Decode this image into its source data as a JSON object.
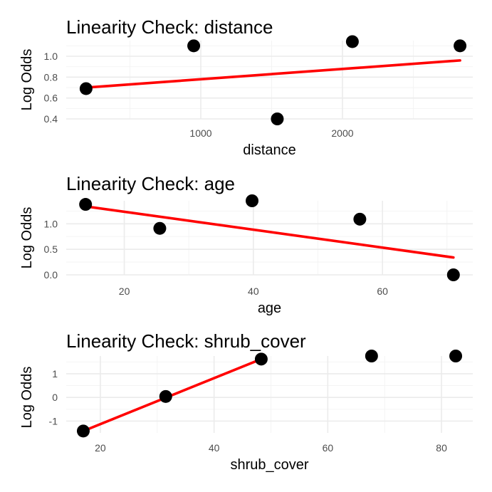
{
  "chart_data": [
    {
      "type": "scatter",
      "title": "Linearity Check: distance",
      "xlabel": "distance",
      "ylabel": "Log Odds",
      "xlim": [
        50,
        2920
      ],
      "ylim": [
        0.4,
        1.15
      ],
      "x_ticks": [
        1000,
        2000
      ],
      "x_minor_ticks": [
        500,
        1500,
        2500
      ],
      "y_ticks": [
        0.4,
        0.6,
        0.8,
        1.0
      ],
      "y_tick_labels": [
        "0.4",
        "0.6",
        "0.8",
        "1.0"
      ],
      "y_minor_ticks": [
        0.5,
        0.7,
        0.9,
        1.1
      ],
      "points": [
        {
          "x": 190,
          "y": 0.69
        },
        {
          "x": 950,
          "y": 1.1
        },
        {
          "x": 1540,
          "y": 0.4
        },
        {
          "x": 2070,
          "y": 1.14
        },
        {
          "x": 2830,
          "y": 1.1
        }
      ],
      "fit_line": {
        "x": [
          190,
          2830
        ],
        "y": [
          0.7,
          0.96
        ],
        "color": "#ff0000"
      },
      "grid": true,
      "legend": "none"
    },
    {
      "type": "scatter",
      "title": "Linearity Check: age",
      "xlabel": "age",
      "ylabel": "Log Odds",
      "xlim": [
        11,
        74
      ],
      "ylim": [
        0,
        1.45
      ],
      "x_ticks": [
        20,
        40,
        60
      ],
      "x_minor_ticks": [
        30,
        50,
        70
      ],
      "y_ticks": [
        0,
        0.5,
        1.0
      ],
      "y_tick_labels": [
        "0.0",
        "0.5",
        "1.0"
      ],
      "y_minor_ticks": [
        0.25,
        0.75,
        1.25
      ],
      "points": [
        {
          "x": 14,
          "y": 1.38
        },
        {
          "x": 25.5,
          "y": 0.91
        },
        {
          "x": 39.8,
          "y": 1.45
        },
        {
          "x": 56.5,
          "y": 1.09
        },
        {
          "x": 71,
          "y": 0.0
        }
      ],
      "fit_line": {
        "x": [
          14,
          71
        ],
        "y": [
          1.34,
          0.34
        ],
        "color": "#ff0000"
      },
      "grid": true,
      "legend": "none"
    },
    {
      "type": "scatter",
      "title": "Linearity Check: shrub_cover",
      "xlabel": "shrub_cover",
      "ylabel": "Log Odds",
      "xlim": [
        14,
        85.5
      ],
      "ylim": [
        -1.5,
        1.75
      ],
      "x_ticks": [
        20,
        40,
        60,
        80
      ],
      "x_minor_ticks": [
        30,
        50,
        70
      ],
      "y_ticks": [
        -1,
        0,
        1
      ],
      "y_tick_labels": [
        "-1",
        "0",
        "1"
      ],
      "y_minor_ticks": [
        -0.5,
        0.5,
        1.5
      ],
      "points": [
        {
          "x": 17,
          "y": -1.42
        },
        {
          "x": 31.5,
          "y": 0.04
        },
        {
          "x": 48.3,
          "y": 1.62
        },
        {
          "x": 67.7,
          "y": 1.75
        },
        {
          "x": 82.5,
          "y": 1.75
        }
      ],
      "fit_line": {
        "x": [
          17,
          48.3
        ],
        "y": [
          -1.42,
          1.62
        ],
        "color": "#ff0000"
      },
      "grid": true,
      "legend": "none"
    }
  ]
}
